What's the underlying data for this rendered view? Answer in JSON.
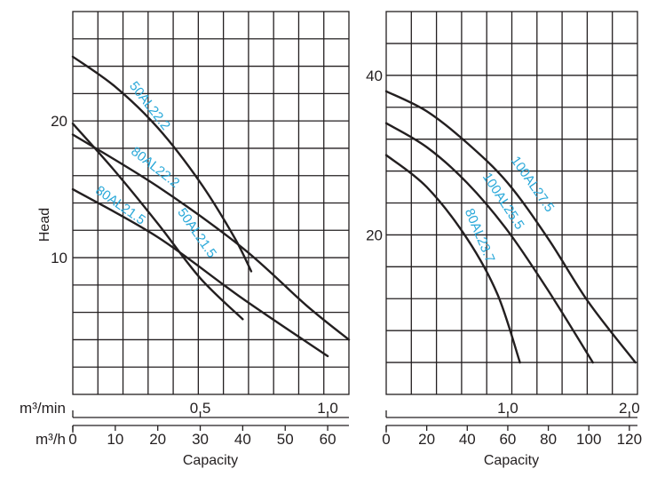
{
  "chart_data": [
    {
      "type": "line",
      "xlabel": "Capacity",
      "ylabel": "Head",
      "x_unit_primary": "m³/h",
      "x_unit_secondary": "m³/min",
      "xlim": [
        0,
        65
      ],
      "ylim": [
        0,
        28
      ],
      "x_ticks": [
        "0",
        "10",
        "20",
        "30",
        "40",
        "50",
        "60"
      ],
      "x_ticks_values": [
        0,
        10,
        20,
        30,
        40,
        50,
        60
      ],
      "x_secondary_ticks": [
        "0.5",
        "1.0"
      ],
      "x_secondary_ticks_values": [
        30,
        60
      ],
      "y_ticks": [
        "10",
        "20"
      ],
      "y_ticks_values": [
        10,
        20
      ],
      "grid": true,
      "series": [
        {
          "name": "50AL22.2",
          "x": [
            0,
            10,
            20,
            30,
            38,
            42
          ],
          "y": [
            24.7,
            22.5,
            19.5,
            15.5,
            11.5,
            9
          ]
        },
        {
          "name": "80AL22.2",
          "x": [
            0,
            20,
            40,
            55,
            65
          ],
          "y": [
            19,
            15.2,
            10.7,
            6.5,
            4
          ]
        },
        {
          "name": "50AL21.5",
          "x": [
            0,
            10,
            20,
            30,
            40
          ],
          "y": [
            19.8,
            16.3,
            12.5,
            8.5,
            5.5
          ]
        },
        {
          "name": "80AL21.5",
          "x": [
            0,
            20,
            40,
            60
          ],
          "y": [
            15,
            11.5,
            7,
            2.8
          ]
        }
      ]
    },
    {
      "type": "line",
      "xlabel": "Capacity",
      "ylabel": "",
      "x_unit_primary": "m³/h",
      "x_unit_secondary": "m³/min",
      "xlim": [
        0,
        124
      ],
      "ylim": [
        0,
        48
      ],
      "x_ticks": [
        "0",
        "20",
        "40",
        "60",
        "80",
        "100",
        "120"
      ],
      "x_ticks_values": [
        0,
        20,
        40,
        60,
        80,
        100,
        120
      ],
      "x_secondary_ticks": [
        "1.0",
        "2.0"
      ],
      "x_secondary_ticks_values": [
        60,
        120
      ],
      "y_ticks": [
        "20",
        "40"
      ],
      "y_ticks_values": [
        20,
        40
      ],
      "grid": true,
      "series": [
        {
          "name": "100AL27.5",
          "x": [
            0,
            20,
            40,
            60,
            80,
            100,
            123
          ],
          "y": [
            38,
            35.5,
            31.5,
            26.5,
            19.5,
            11.5,
            4
          ]
        },
        {
          "name": "100AL25.5",
          "x": [
            0,
            20,
            40,
            60,
            80,
            102
          ],
          "y": [
            34,
            31,
            26.5,
            20.5,
            13,
            4
          ]
        },
        {
          "name": "80AL23.7",
          "x": [
            0,
            20,
            40,
            55,
            66
          ],
          "y": [
            30,
            26,
            19.5,
            12.5,
            4
          ]
        }
      ]
    }
  ]
}
